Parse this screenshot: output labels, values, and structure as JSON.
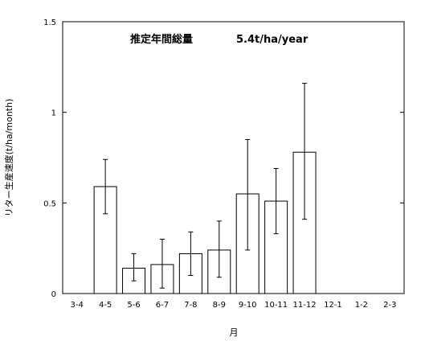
{
  "chart_data": {
    "type": "bar",
    "title": "推定年間総量",
    "subtitle": "5.4t/ha/year",
    "xlabel": "月",
    "ylabel": "リター生産速度(t/ha/month)",
    "ylim": [
      0,
      1.5
    ],
    "yticks": [
      0,
      0.5,
      1,
      1.5
    ],
    "ytick_labels": [
      "0",
      "0.5",
      "1",
      "1.5"
    ],
    "grid": false,
    "categories": [
      "3-4",
      "4-5",
      "5-6",
      "6-7",
      "7-8",
      "8-9",
      "9-10",
      "10-11",
      "11-12",
      "12-1",
      "1-2",
      "2-3"
    ],
    "values": [
      0,
      0.59,
      0.14,
      0.16,
      0.22,
      0.24,
      0.55,
      0.51,
      0.78,
      0,
      0,
      0
    ],
    "error_low": [
      null,
      0.44,
      0.07,
      0.03,
      0.1,
      0.09,
      0.24,
      0.33,
      0.41,
      null,
      null,
      null
    ],
    "error_high": [
      null,
      0.74,
      0.22,
      0.3,
      0.34,
      0.4,
      0.85,
      0.69,
      1.16,
      null,
      null,
      null
    ],
    "bar_fill": "#ffffff",
    "bar_stroke": "#000000"
  }
}
